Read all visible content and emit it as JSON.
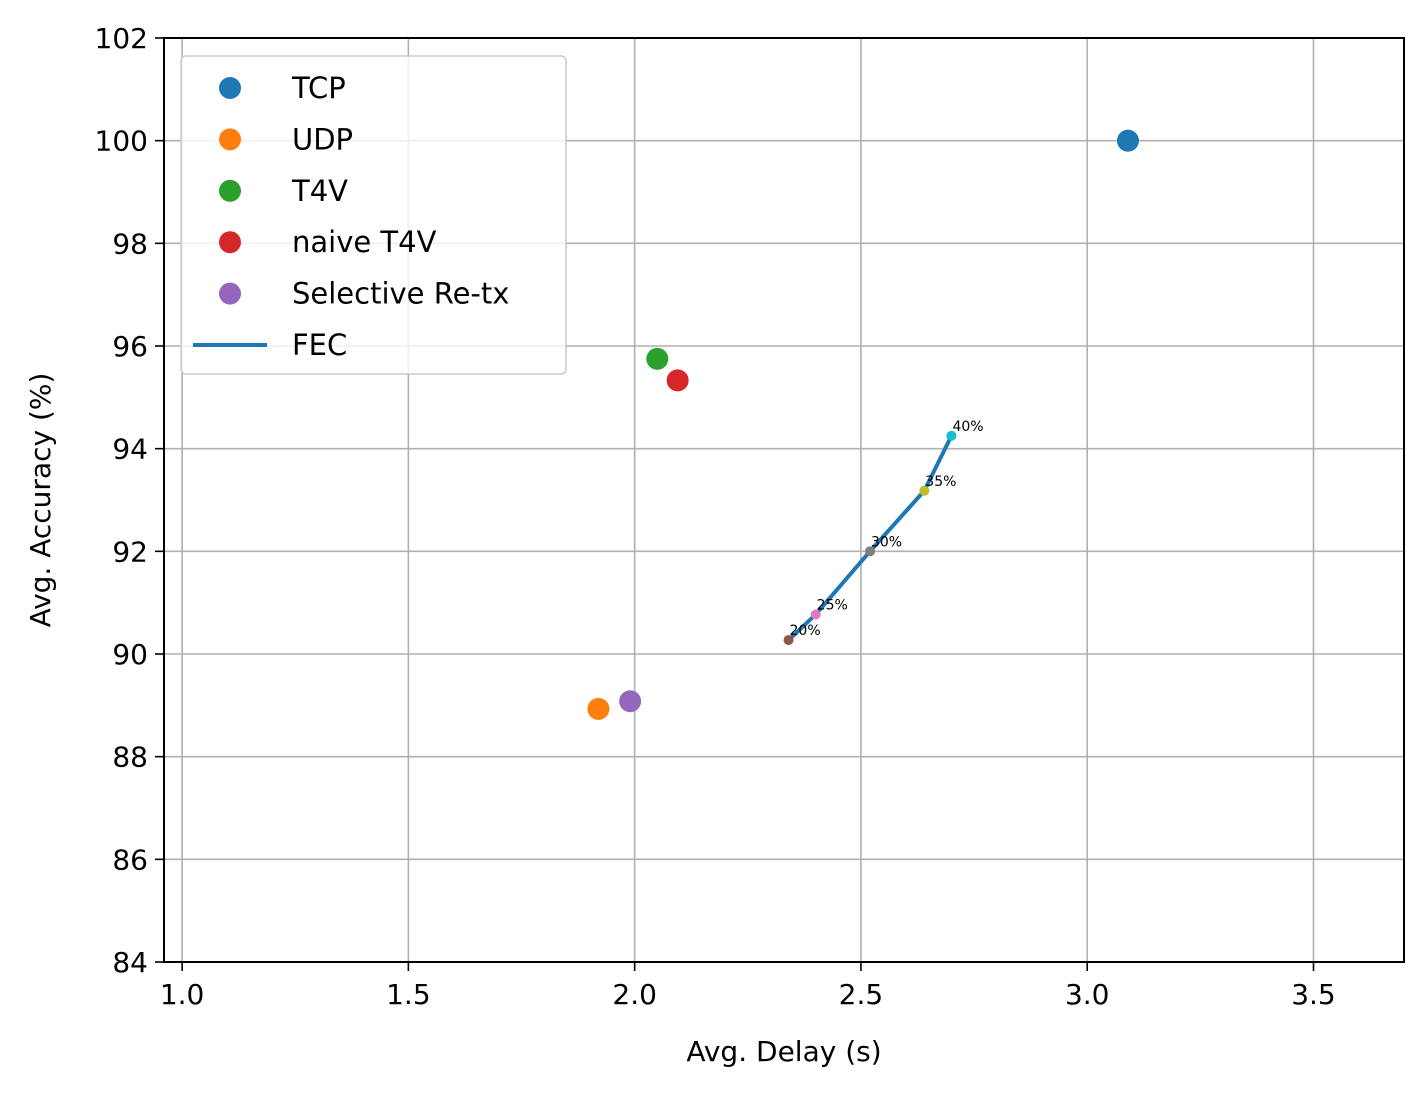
{
  "chart_data": {
    "type": "scatter",
    "xlabel": "Avg. Delay (s)",
    "ylabel": "Avg. Accuracy (%)",
    "xlim": [
      0.96,
      3.7
    ],
    "ylim": [
      84,
      102
    ],
    "xticks": [
      "1.0",
      "1.5",
      "2.0",
      "2.5",
      "3.0",
      "3.5"
    ],
    "xtick_values": [
      1.0,
      1.5,
      2.0,
      2.5,
      3.0,
      3.5
    ],
    "yticks": [
      "84",
      "86",
      "88",
      "90",
      "92",
      "94",
      "96",
      "98",
      "100",
      "102"
    ],
    "ytick_values": [
      84,
      86,
      88,
      90,
      92,
      94,
      96,
      98,
      100,
      102
    ],
    "grid": true,
    "legend_position": "upper-left",
    "series": [
      {
        "name": "TCP",
        "type": "scatter",
        "color": "#1f77b4",
        "points": [
          {
            "x": 3.09,
            "y": 100.0
          }
        ]
      },
      {
        "name": "UDP",
        "type": "scatter",
        "color": "#ff7f0e",
        "points": [
          {
            "x": 1.92,
            "y": 88.93
          }
        ]
      },
      {
        "name": "T4V",
        "type": "scatter",
        "color": "#2ca02c",
        "points": [
          {
            "x": 2.05,
            "y": 95.75
          }
        ]
      },
      {
        "name": "naive T4V",
        "type": "scatter",
        "color": "#d62728",
        "points": [
          {
            "x": 2.095,
            "y": 95.33
          }
        ]
      },
      {
        "name": "Selective Re-tx",
        "type": "scatter",
        "color": "#9467bd",
        "points": [
          {
            "x": 1.99,
            "y": 89.08
          }
        ]
      },
      {
        "name": "FEC",
        "type": "line",
        "color": "#1f77b4",
        "points": [
          {
            "x": 2.34,
            "y": 90.27,
            "label": "20%",
            "marker_color": "#8c564b"
          },
          {
            "x": 2.4,
            "y": 90.77,
            "label": "25%",
            "marker_color": "#e377c2"
          },
          {
            "x": 2.52,
            "y": 92.0,
            "label": "30%",
            "marker_color": "#7f7f7f"
          },
          {
            "x": 2.64,
            "y": 93.18,
            "label": "35%",
            "marker_color": "#bcbd22"
          },
          {
            "x": 2.7,
            "y": 94.25,
            "label": "40%",
            "marker_color": "#17becf"
          }
        ]
      }
    ]
  }
}
